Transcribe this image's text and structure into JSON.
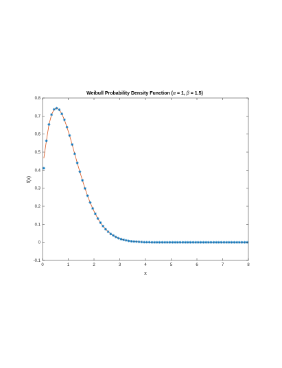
{
  "chart_data": {
    "type": "line",
    "title_main": "Weibull Probability Density Function (",
    "title_alpha": "α",
    "title_mid": " = 1, ",
    "title_beta": "β",
    "title_end": " = 1.5)",
    "xlabel": "x",
    "ylabel": "f(x)",
    "xlim": [
      0,
      8
    ],
    "ylim": [
      -0.1,
      0.8
    ],
    "xticks": [
      "0",
      "1",
      "2",
      "3",
      "4",
      "5",
      "6",
      "7",
      "8"
    ],
    "yticks": [
      "-0.1",
      "0",
      "0.1",
      "0.2",
      "0.3",
      "0.4",
      "0.5",
      "0.6",
      "0.7",
      "0.8"
    ],
    "grid": false,
    "legend": "none",
    "series": [
      {
        "kind": "markers",
        "marker": "asterisk",
        "color": "#0072BD",
        "x": [
          0.05,
          0.15,
          0.25,
          0.35,
          0.45,
          0.55,
          0.65,
          0.75,
          0.85,
          0.95,
          1.05,
          1.15,
          1.25,
          1.35,
          1.45,
          1.55,
          1.65,
          1.75,
          1.85,
          1.95,
          2.05,
          2.15,
          2.25,
          2.35,
          2.45,
          2.55,
          2.65,
          2.75,
          2.85,
          2.95,
          3.05,
          3.15,
          3.25,
          3.35,
          3.45,
          3.55,
          3.65,
          3.75,
          3.85,
          3.95,
          4.05,
          4.15,
          4.25,
          4.35,
          4.45,
          4.55,
          4.65,
          4.75,
          4.85,
          4.95,
          5.05,
          5.15,
          5.25,
          5.35,
          5.45,
          5.55,
          5.65,
          5.75,
          5.85,
          5.95,
          6.05,
          6.15,
          6.25,
          6.35,
          6.45,
          6.55,
          6.65,
          6.75,
          6.85,
          6.95,
          7.05,
          7.15,
          7.25,
          7.35,
          7.45,
          7.55,
          7.65,
          7.75,
          7.85,
          7.95
        ],
        "y": [
          0.411,
          0.563,
          0.653,
          0.708,
          0.737,
          0.744,
          0.735,
          0.712,
          0.679,
          0.638,
          0.592,
          0.542,
          0.491,
          0.44,
          0.391,
          0.344,
          0.299,
          0.258,
          0.221,
          0.188,
          0.158,
          0.132,
          0.109,
          0.09,
          0.073,
          0.059,
          0.047,
          0.038,
          0.03,
          0.023,
          0.018,
          0.014,
          0.011,
          0.008,
          0.006,
          0.005,
          0.004,
          0.003,
          0.002,
          0.001,
          0.001,
          0.001,
          0.0,
          0.0,
          0.0,
          0.0,
          0.0,
          0.0,
          0.0,
          0.0,
          0.0,
          0.0,
          0.0,
          0.0,
          0.0,
          0.0,
          0.0,
          0.0,
          0.0,
          0.0,
          0.0,
          0.0,
          0.0,
          0.0,
          0.0,
          0.0,
          0.0,
          0.0,
          0.0,
          0.0,
          0.0,
          0.0,
          0.0,
          0.0,
          0.0,
          0.0,
          0.0,
          0.0,
          0.0,
          0.0
        ]
      },
      {
        "kind": "line",
        "color": "#D95319",
        "x": [
          0.05,
          0.15,
          0.25,
          0.35,
          0.45,
          0.55,
          0.65,
          0.75,
          0.85,
          0.95,
          1.05,
          1.15,
          1.25,
          1.35,
          1.45,
          1.55,
          1.65,
          1.75,
          1.85,
          1.95,
          2.05,
          2.15,
          2.25,
          2.35,
          2.45,
          2.55,
          2.65,
          2.75,
          2.85,
          2.95,
          3.05,
          3.15,
          3.25,
          3.35,
          3.45,
          3.55,
          3.65,
          3.75,
          3.85,
          3.95,
          4.05,
          4.15,
          4.25,
          4.35,
          4.45,
          4.55,
          4.65,
          4.75,
          4.85,
          4.95,
          5.05,
          5.15,
          5.25,
          5.35,
          5.45,
          5.55,
          5.65,
          5.75,
          5.85,
          5.95,
          6.05,
          6.15,
          6.25,
          6.35,
          6.45,
          6.55,
          6.65,
          6.75,
          6.85,
          6.95,
          7.05,
          7.15,
          7.25,
          7.35,
          7.45,
          7.55,
          7.65,
          7.75,
          7.85,
          7.95
        ],
        "y": [
          0.466,
          0.563,
          0.653,
          0.708,
          0.737,
          0.744,
          0.735,
          0.712,
          0.679,
          0.638,
          0.592,
          0.542,
          0.491,
          0.44,
          0.391,
          0.344,
          0.299,
          0.258,
          0.221,
          0.188,
          0.158,
          0.132,
          0.109,
          0.09,
          0.073,
          0.059,
          0.047,
          0.038,
          0.03,
          0.023,
          0.018,
          0.014,
          0.011,
          0.008,
          0.006,
          0.005,
          0.004,
          0.003,
          0.002,
          0.001,
          0.001,
          0.001,
          0.0,
          0.0,
          0.0,
          0.0,
          0.0,
          0.0,
          0.0,
          0.0,
          0.0,
          0.0,
          0.0,
          0.0,
          0.0,
          0.0,
          0.0,
          0.0,
          0.0,
          0.0,
          0.0,
          0.0,
          0.0,
          0.0,
          0.0,
          0.0,
          0.0,
          0.0,
          0.0,
          0.0,
          0.0,
          0.0,
          0.0,
          0.0,
          0.0,
          0.0,
          0.0,
          0.0,
          0.0,
          0.0
        ]
      }
    ]
  }
}
